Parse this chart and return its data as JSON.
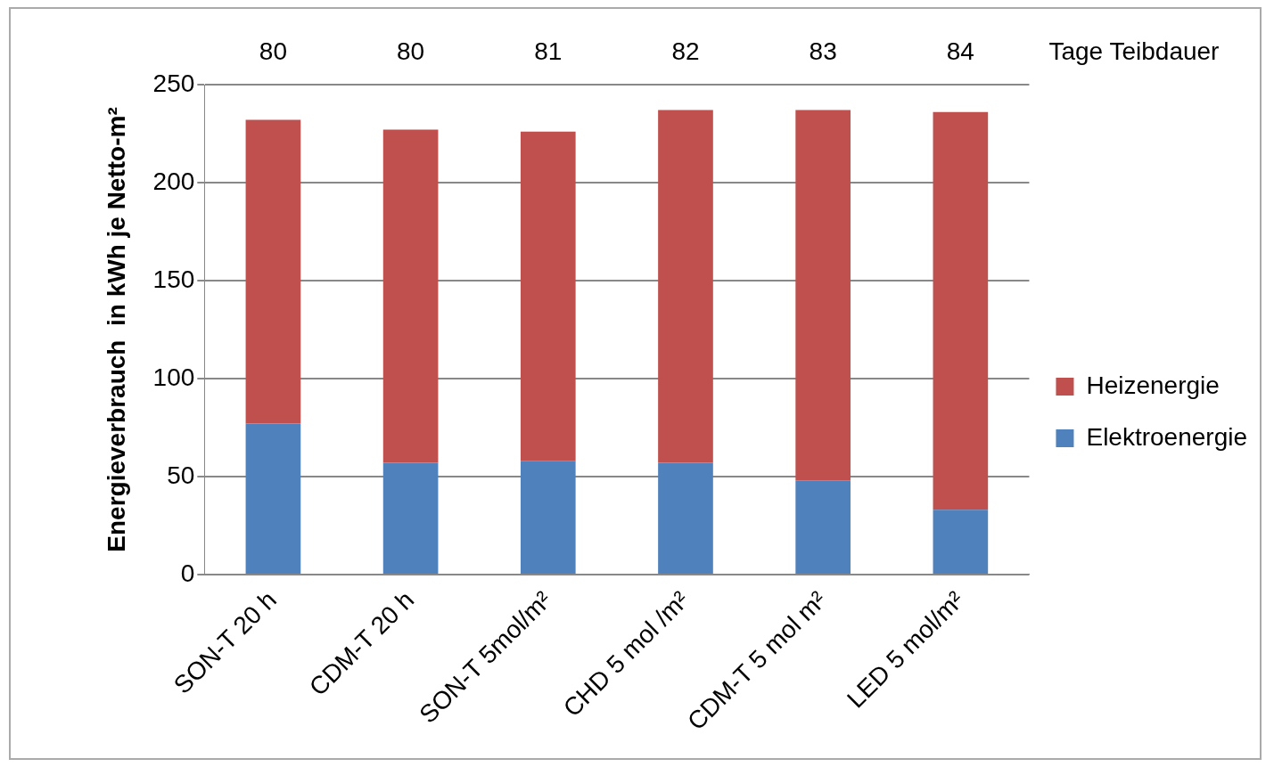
{
  "chart_data": {
    "type": "bar",
    "stacked": true,
    "ylabel": "Energieverbrauch  in kWh je Netto-m²",
    "categories": [
      "SON-T 20 h",
      "CDM-T 20 h",
      "SON-T 5mol/m²",
      "CHD 5 mol /m²",
      "CDM-T 5 mol m²",
      "LED 5 mol/m²"
    ],
    "series": [
      {
        "name": "Elektroenergie",
        "color": "#4f81bd",
        "values": [
          77,
          57,
          58,
          57,
          48,
          33
        ]
      },
      {
        "name": "Heizenergie",
        "color": "#c0504d",
        "values": [
          155,
          170,
          168,
          180,
          189,
          203
        ]
      }
    ],
    "ylim": [
      0,
      250
    ],
    "yticks": [
      0,
      50,
      100,
      150,
      200,
      250
    ],
    "grid": "y",
    "legend": "right",
    "annotations": [
      "80",
      "80",
      "81",
      "82",
      "83",
      "84",
      "Tage Teibdauer"
    ]
  }
}
